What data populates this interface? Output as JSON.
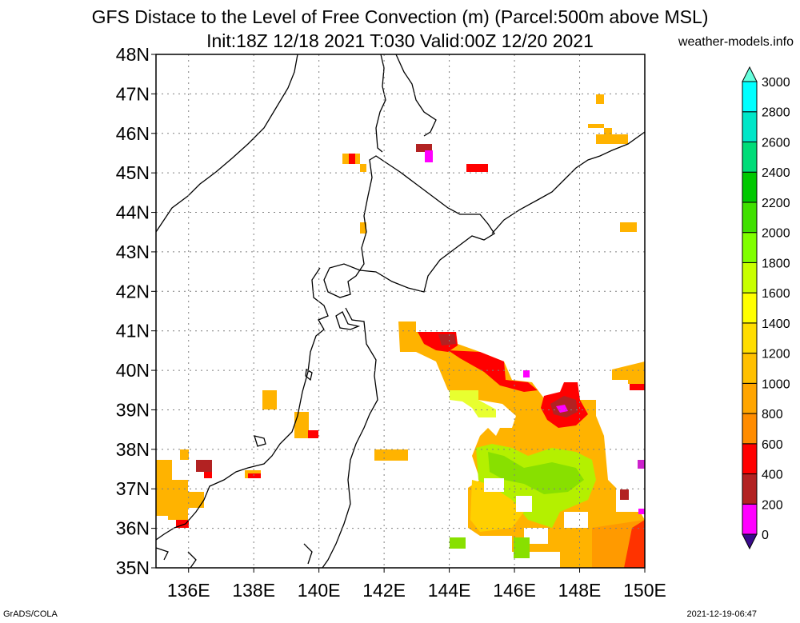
{
  "header": {
    "title": "GFS Distace to the Level of Free Convection (m) (Parcel:500m above MSL)",
    "subtitle": "Init:18Z 12/18 2021 T:030 Valid:00Z 12/20 2021",
    "site": "weather-models.info"
  },
  "map": {
    "lon_range": [
      135,
      150
    ],
    "lat_range": [
      35,
      48
    ],
    "lon_ticks": [
      "136E",
      "138E",
      "140E",
      "142E",
      "144E",
      "146E",
      "148E",
      "150E"
    ],
    "lat_ticks": [
      "35N",
      "36N",
      "37N",
      "38N",
      "39N",
      "40N",
      "41N",
      "42N",
      "43N",
      "44N",
      "45N",
      "46N",
      "47N",
      "48N"
    ]
  },
  "colorbar": {
    "labels": [
      "0",
      "200",
      "400",
      "600",
      "800",
      "1000",
      "1200",
      "1400",
      "1600",
      "1800",
      "2000",
      "2200",
      "2400",
      "2600",
      "2800",
      "3000"
    ],
    "colors": [
      "#3a0a8c",
      "#ff00ff",
      "#b22222",
      "#ff0000",
      "#ff8c00",
      "#ffa500",
      "#ffc000",
      "#ffdd00",
      "#ffff00",
      "#c8ff00",
      "#80ff00",
      "#40e000",
      "#00c800",
      "#00dc78",
      "#00e6c8",
      "#00ffff"
    ],
    "low_color": "#3a0a8c",
    "high_color": "#66ffdd"
  },
  "footer": {
    "left": "GrADS/COLA",
    "right": "2021-12-19-06:47"
  }
}
